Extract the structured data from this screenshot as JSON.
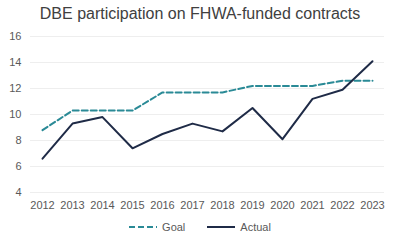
{
  "chart_data": {
    "type": "line",
    "title": "DBE participation on FHWA-funded contracts",
    "categories": [
      "2012",
      "2013",
      "2014",
      "2015",
      "2016",
      "2017",
      "2018",
      "2019",
      "2020",
      "2021",
      "2022",
      "2023"
    ],
    "series": [
      {
        "name": "Goal",
        "color": "#2a8a96",
        "line_style": "dashed",
        "values": [
          8.8,
          10.3,
          10.3,
          10.3,
          11.7,
          11.7,
          11.7,
          12.2,
          12.2,
          12.2,
          12.6,
          12.6
        ]
      },
      {
        "name": "Actual",
        "color": "#1f2b47",
        "line_style": "solid",
        "values": [
          6.6,
          9.3,
          9.8,
          7.4,
          8.5,
          9.3,
          8.7,
          10.5,
          8.1,
          11.2,
          11.9,
          14.1
        ]
      }
    ],
    "ylim": [
      4,
      16
    ],
    "yticks": [
      4,
      6,
      8,
      10,
      12,
      14,
      16
    ],
    "grid": true,
    "legend": "bottom"
  }
}
